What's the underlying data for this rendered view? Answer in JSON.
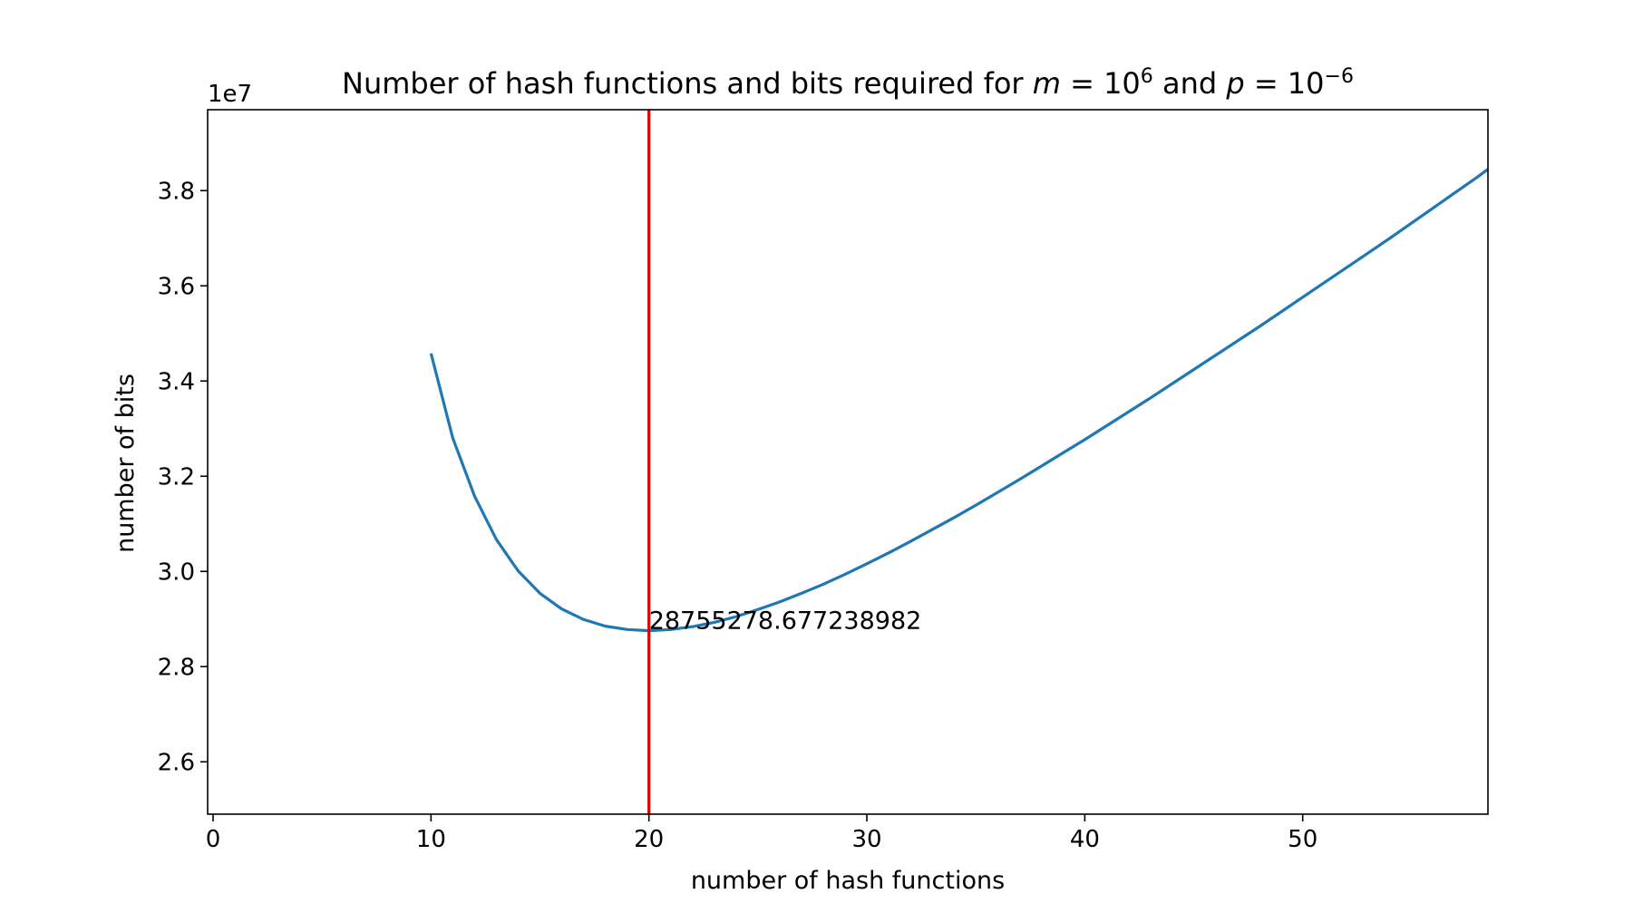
{
  "chart_data": {
    "type": "line",
    "title": {
      "prefix": "Number of hash functions and bits required for ",
      "m_var": "m",
      "m_eq": " = ",
      "m_base": "10",
      "m_exp": "6",
      "and": " and ",
      "p_var": "p",
      "p_eq": " = ",
      "p_base": "10",
      "p_exp": "−6"
    },
    "xlabel": "number of hash functions",
    "ylabel": "number of bits",
    "y_offset_label": "1e7",
    "xlim": [
      -0.25,
      58.5
    ],
    "ylim": [
      2.49,
      3.97
    ],
    "xticks": [
      0,
      10,
      20,
      30,
      40,
      50
    ],
    "xtick_labels": [
      "0",
      "10",
      "20",
      "30",
      "40",
      "50"
    ],
    "yticks": [
      2.6,
      2.8,
      3.0,
      3.2,
      3.4,
      3.6,
      3.8
    ],
    "ytick_labels": [
      "2.6",
      "2.8",
      "3.0",
      "3.2",
      "3.4",
      "3.6",
      "3.8"
    ],
    "y_unit_scale": 10000000,
    "series": [
      {
        "color": "#1f77b4",
        "x": [
          10,
          11,
          12,
          13,
          14,
          15,
          16,
          17,
          18,
          19,
          20,
          21,
          22,
          23,
          24,
          25,
          26,
          27,
          28,
          29,
          30,
          31,
          32,
          33,
          34,
          35,
          36,
          37,
          38,
          39,
          40,
          41,
          42,
          43,
          44,
          45,
          46,
          47,
          48,
          49,
          50,
          51,
          52,
          53,
          54,
          55,
          56,
          57,
          58,
          58.5
        ],
        "y": [
          3.458,
          3.28,
          3.158,
          3.067,
          3.001,
          2.954,
          2.921,
          2.899,
          2.885,
          2.878,
          2.8755,
          2.878,
          2.884,
          2.893,
          2.905,
          2.92,
          2.936,
          2.954,
          2.973,
          2.994,
          3.016,
          3.039,
          3.063,
          3.088,
          3.113,
          3.139,
          3.166,
          3.193,
          3.221,
          3.249,
          3.277,
          3.306,
          3.335,
          3.364,
          3.394,
          3.424,
          3.454,
          3.484,
          3.514,
          3.545,
          3.576,
          3.607,
          3.638,
          3.669,
          3.7,
          3.732,
          3.764,
          3.796,
          3.828,
          3.845
        ]
      }
    ],
    "vline": {
      "x": 20,
      "color": "#e00000"
    },
    "annotation": {
      "text": "28755278.677238982",
      "x": 20,
      "y": 2.875527867723898
    },
    "grid": false,
    "legend": "none",
    "colors": {
      "line": "#1f77b4",
      "vline": "#e00000",
      "axes": "#000000"
    }
  }
}
